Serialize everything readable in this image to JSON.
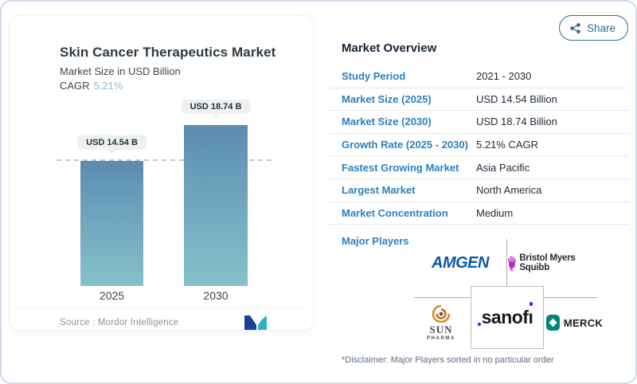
{
  "share": {
    "label": "Share"
  },
  "left_card": {
    "title": "Skin Cancer Therapeutics Market",
    "subtitle": "Market Size in USD Billion",
    "cagr_label": "CAGR",
    "cagr_value": "5.21%",
    "source": "Source :  Mordor Intelligence"
  },
  "chart_data": {
    "type": "bar",
    "title": "Skin Cancer Therapeutics Market",
    "subtitle": "Market Size in USD Billion",
    "unit": "USD Billion",
    "categories": [
      "2025",
      "2030"
    ],
    "values": [
      14.54,
      18.74
    ],
    "bar_labels": [
      "USD 14.54 B",
      "USD 18.74 B"
    ],
    "cagr": "5.21%",
    "reference_line_at": 14.54,
    "bar_gradient": [
      "#5b8bb0",
      "#85c1ca"
    ],
    "legend_position": "none",
    "grid": "off"
  },
  "overview": {
    "title": "Market Overview",
    "rows": [
      {
        "label": "Study Period",
        "value": "2021 - 2030"
      },
      {
        "label": "Market Size (2025)",
        "value": "USD 14.54 Billion"
      },
      {
        "label": "Market Size (2030)",
        "value": "USD 18.74 Billion"
      },
      {
        "label": "Growth Rate (2025 - 2030)",
        "value": "5.21% CAGR"
      },
      {
        "label": "Fastest Growing Market",
        "value": "Asia Pacific"
      },
      {
        "label": "Largest Market",
        "value": "North America"
      },
      {
        "label": "Market Concentration",
        "value": "Medium"
      }
    ],
    "major_players_label": "Major Players",
    "disclaimer": "*Disclaimer: Major Players sorted in no particular order"
  },
  "players": {
    "amgen": "AMGEN",
    "bms": "Bristol Myers Squibb",
    "sun_top": "SUN",
    "sun_bottom": "PHARMA",
    "sanofi_stem": "sanof",
    "sanofi_i": "ı",
    "merck": "MERCK"
  },
  "colors": {
    "accent_blue_label": "#2a80be",
    "bar_top": "#5b8bb0",
    "bar_bottom": "#85c1ca",
    "cagr_light_blue": "#92b7d2",
    "share_teal": "#2e6b8c",
    "amgen_blue": "#0b58a8",
    "bms_magenta": "#be2bbb",
    "merck_teal": "#00857c",
    "sun_orange": "#d98a29",
    "sanofi_purple": "#7a00e6",
    "mordor_navy": "#1d3f94",
    "mordor_teal": "#2fb3c4"
  }
}
